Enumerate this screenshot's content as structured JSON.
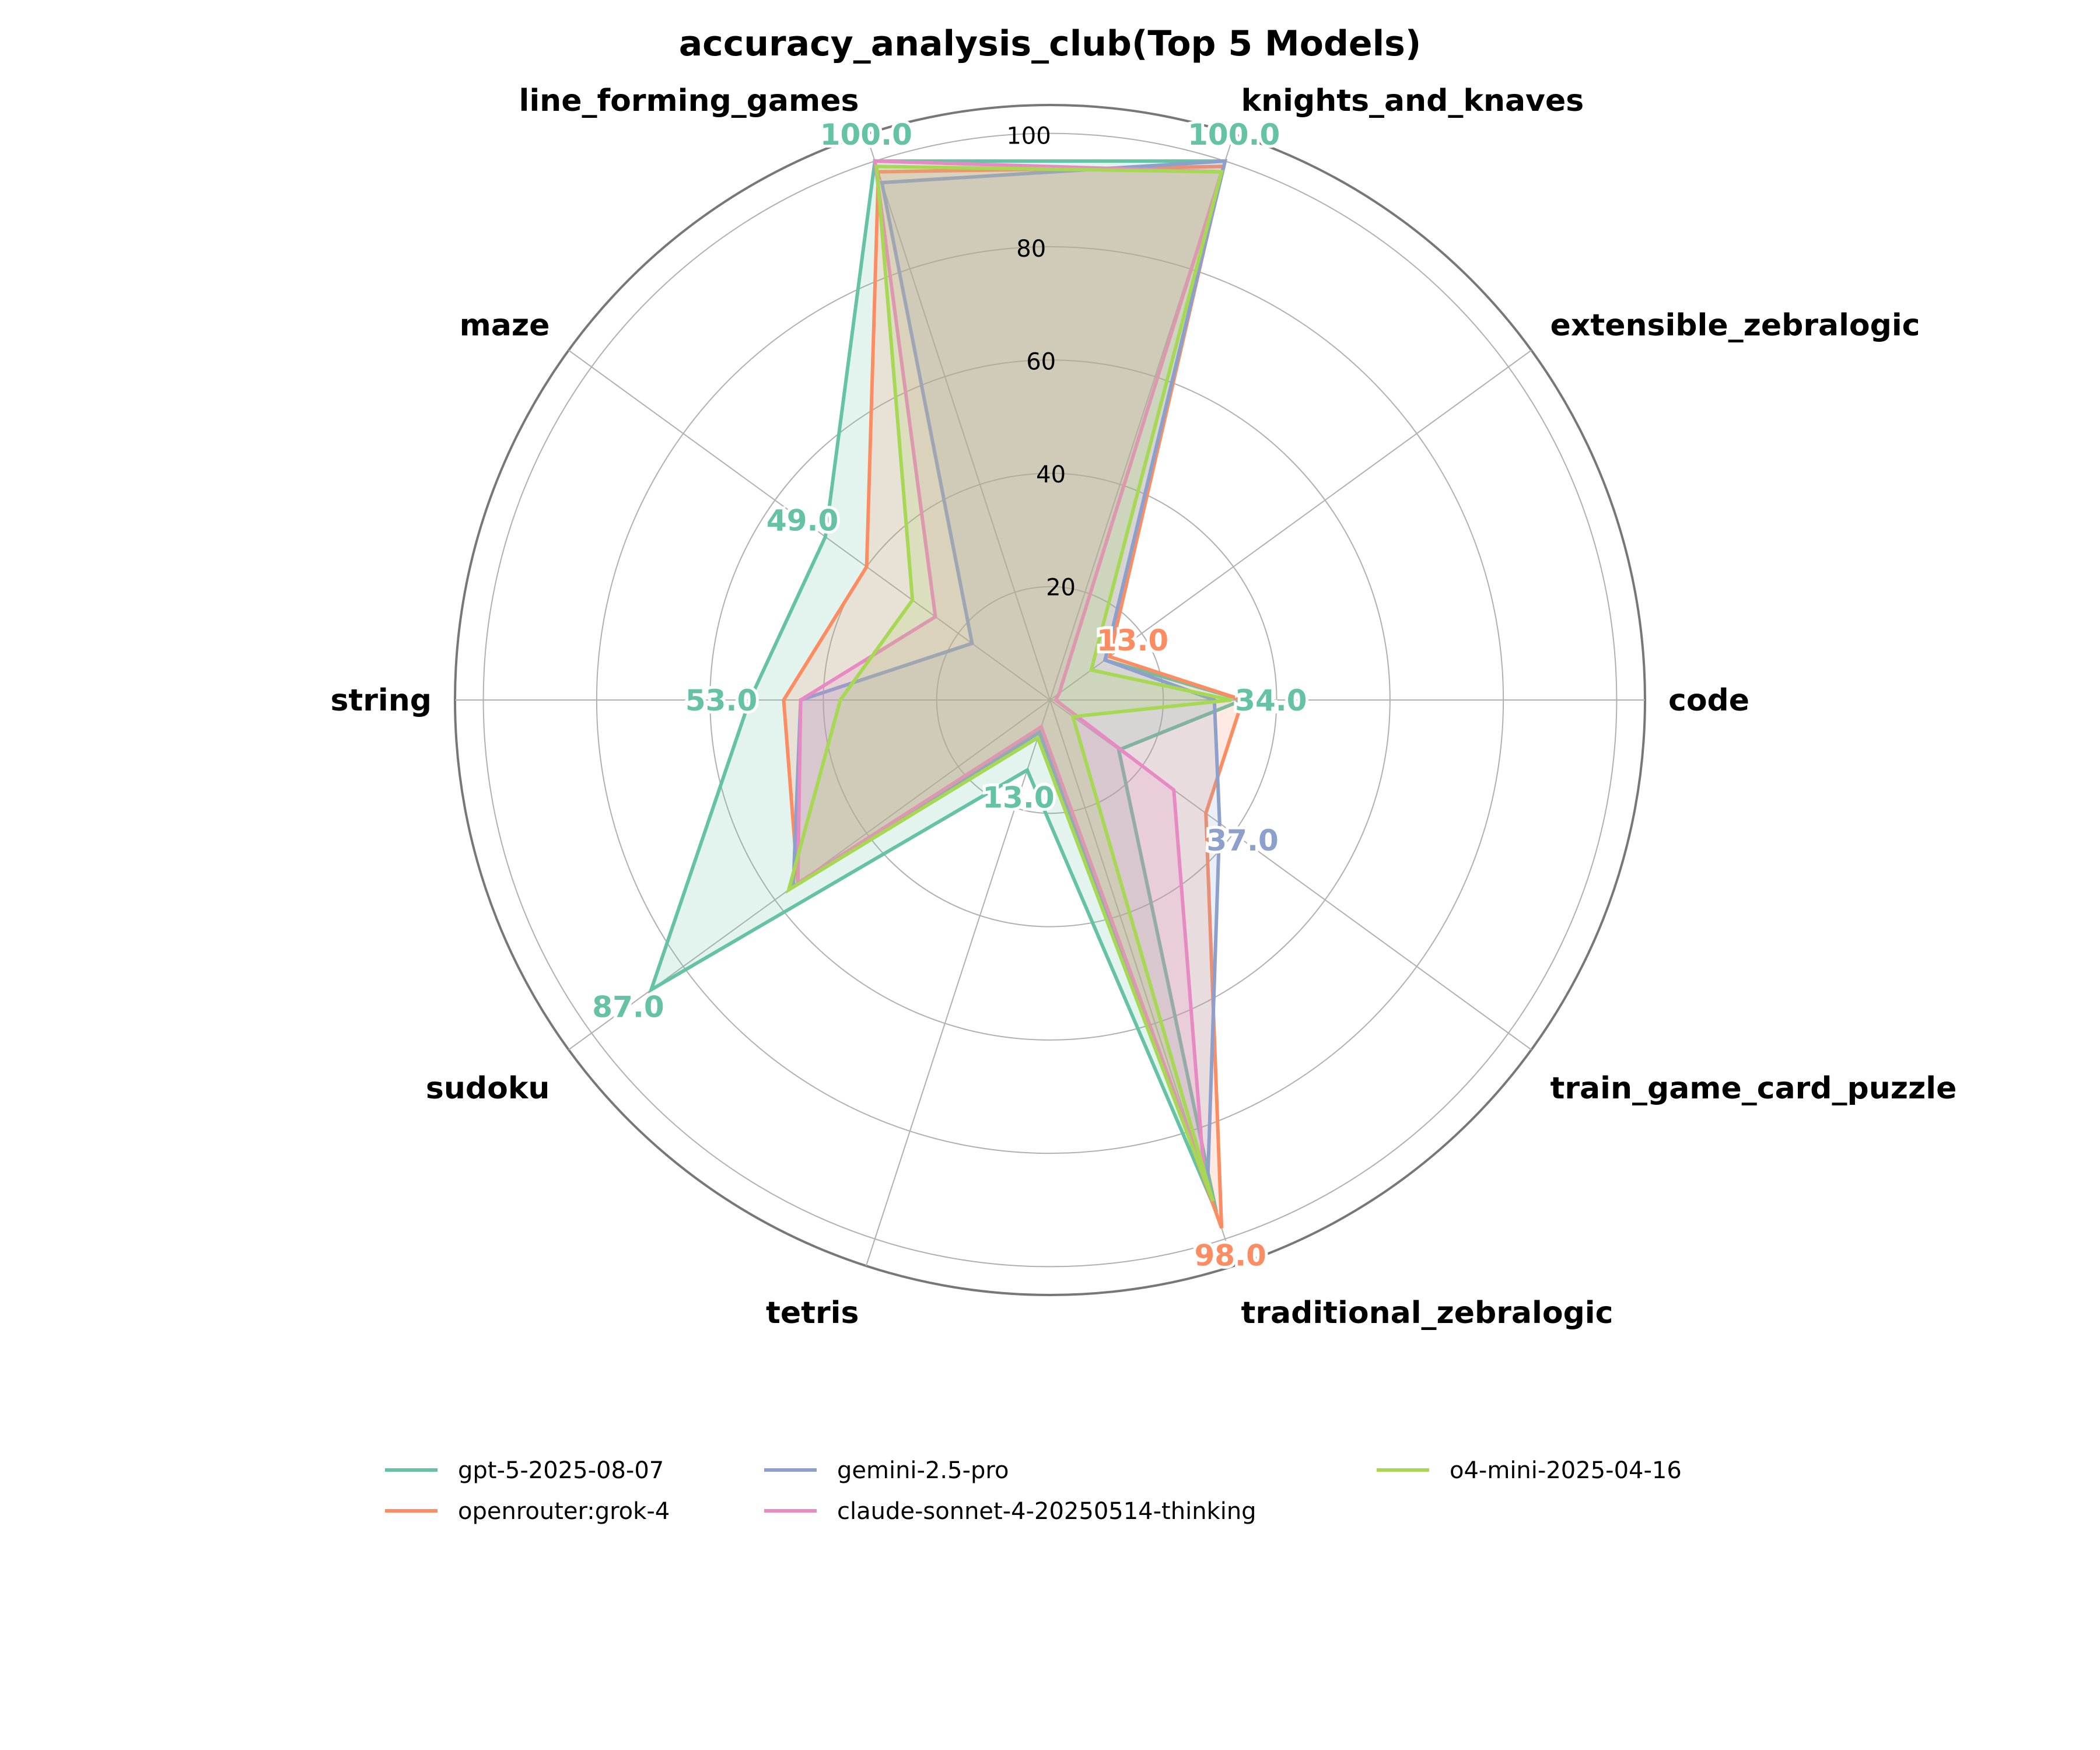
{
  "chart_data": {
    "type": "radar",
    "title": "accuracy_analysis_club(Top 5 Models)",
    "categories": [
      "code",
      "extensible_zebralogic",
      "knights_and_knaves",
      "line_forming_games",
      "maze",
      "string",
      "sudoku",
      "tetris",
      "traditional_zebralogic",
      "train_game_card_puzzle"
    ],
    "rlim": [
      0,
      105
    ],
    "rticks": [
      20,
      40,
      60,
      80,
      100
    ],
    "grid": true,
    "legend_position": "bottom",
    "series": [
      {
        "name": "gpt-5-2025-08-07",
        "color": "#66c2a5",
        "values": [
          34,
          12,
          100,
          100,
          49,
          53,
          87,
          13,
          95,
          15
        ]
      },
      {
        "name": "openrouter:grok-4",
        "color": "#fc8d62",
        "values": [
          34,
          13,
          99,
          98,
          40,
          47,
          55,
          5,
          98,
          34
        ]
      },
      {
        "name": "gemini-2.5-pro",
        "color": "#8da0cb",
        "values": [
          29,
          12,
          100,
          96,
          17,
          44,
          56,
          6,
          90,
          37
        ]
      },
      {
        "name": "claude-sonnet-4-20250514-thinking",
        "color": "#e78ac3",
        "values": [
          1,
          2,
          98,
          100,
          25,
          44,
          55,
          5,
          88,
          27
        ]
      },
      {
        "name": "o4-mini-2025-04-16",
        "color": "#a6d854",
        "values": [
          32,
          9,
          98,
          99,
          30,
          37,
          57,
          7,
          93,
          5
        ]
      }
    ],
    "max_labels": [
      {
        "text": "34.0",
        "color": "#66c2a5"
      },
      {
        "text": "13.0",
        "color": "#fc8d62"
      },
      {
        "text": "100.0",
        "color": "#66c2a5"
      },
      {
        "text": "100.0",
        "color": "#66c2a5"
      },
      {
        "text": "49.0",
        "color": "#66c2a5"
      },
      {
        "text": "53.0",
        "color": "#66c2a5"
      },
      {
        "text": "87.0",
        "color": "#66c2a5"
      },
      {
        "text": "13.0",
        "color": "#66c2a5"
      },
      {
        "text": "98.0",
        "color": "#fc8d62"
      },
      {
        "text": "37.0",
        "color": "#8da0cb"
      }
    ]
  }
}
